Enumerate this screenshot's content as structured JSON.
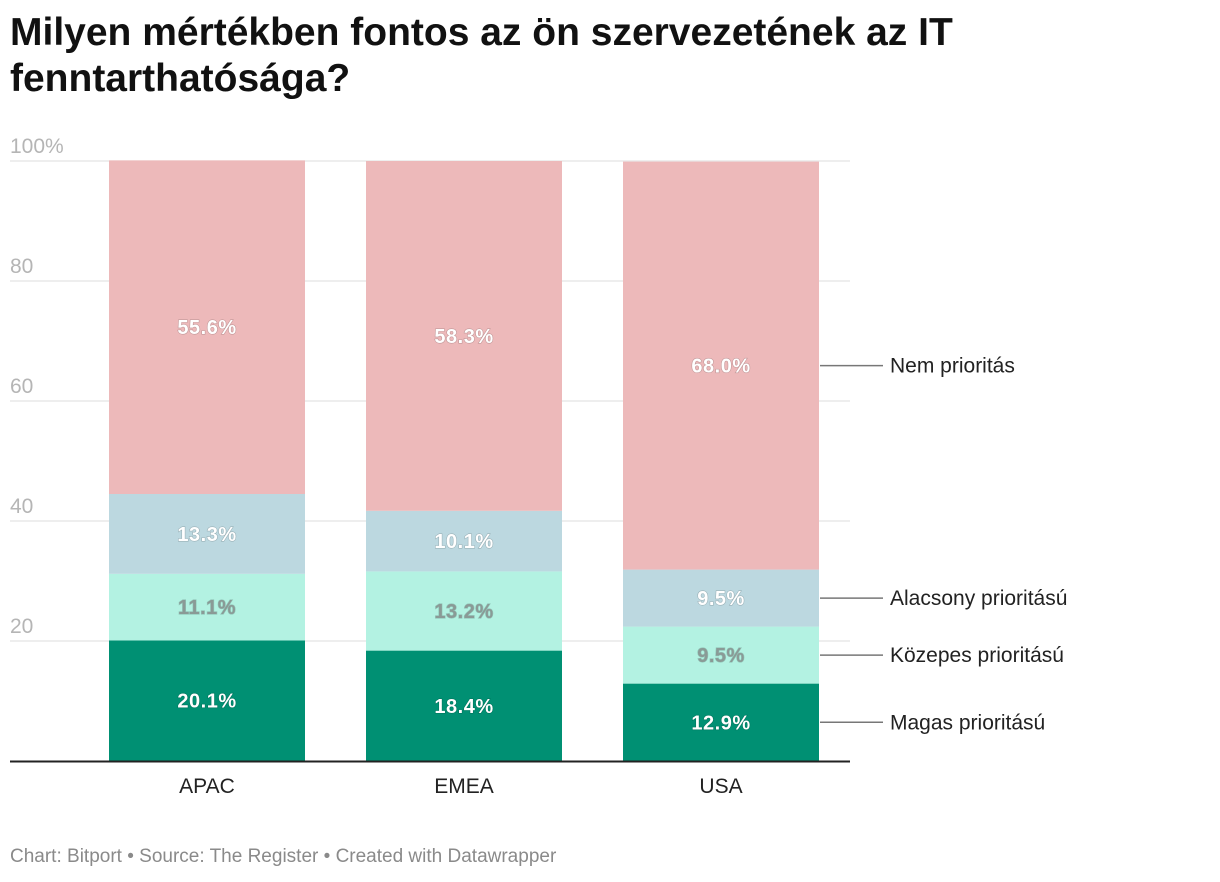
{
  "title": "Milyen mértékben fontos az ön szervezetének az IT fenntarthatósága?",
  "footer": {
    "chart_credit": "Chart: Bitport",
    "source": "Source: The Register",
    "created_with": "Created with Datawrapper",
    "separator": "•"
  },
  "chart_data": {
    "type": "bar",
    "stacked": true,
    "categories": [
      "APAC",
      "EMEA",
      "USA"
    ],
    "series": [
      {
        "name": "Magas prioritású",
        "values": [
          20.1,
          18.4,
          12.9
        ],
        "color": "#009073",
        "label_color": "#ffffff",
        "labels": [
          "20.1%",
          "18.4%",
          "12.9%"
        ]
      },
      {
        "name": "Közepes prioritású",
        "values": [
          11.1,
          13.2,
          9.5
        ],
        "color": "#b3f2e2",
        "label_color": "#8a9a96",
        "labels": [
          "11.1%",
          "13.2%",
          "9.5%"
        ]
      },
      {
        "name": "Alacsony prioritású",
        "values": [
          13.3,
          10.1,
          9.5
        ],
        "color": "#bcd8e0",
        "label_color": "#ffffff",
        "labels": [
          "13.3%",
          "10.1%",
          "9.5%"
        ]
      },
      {
        "name": "Nem prioritás",
        "values": [
          55.6,
          58.3,
          68.0
        ],
        "color": "#edb9ba",
        "label_color": "#ffffff",
        "labels": [
          "55.6%",
          "58.3%",
          "68.0%"
        ]
      }
    ],
    "y_ticks": [
      0,
      20,
      40,
      60,
      80,
      100
    ],
    "y_tick_labels": [
      "20",
      "40",
      "60",
      "80",
      "100%"
    ],
    "ylim": [
      0,
      100
    ],
    "legend_position": "right, inline with USA bar",
    "grid": true
  }
}
